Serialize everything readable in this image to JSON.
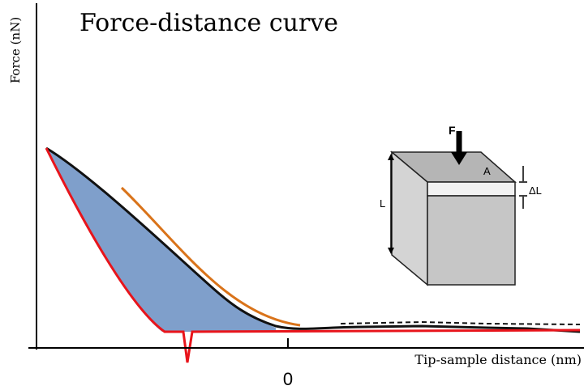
{
  "title": "Force-distance curve",
  "y_axis_label": "Force (nN)",
  "x_axis_label": "Tip-sample distance  (nm)",
  "x_tick_label": "0",
  "inset": {
    "force_label": "F",
    "area_label": "A",
    "length_label": "L",
    "delta_length_label": "ΔL"
  }
}
